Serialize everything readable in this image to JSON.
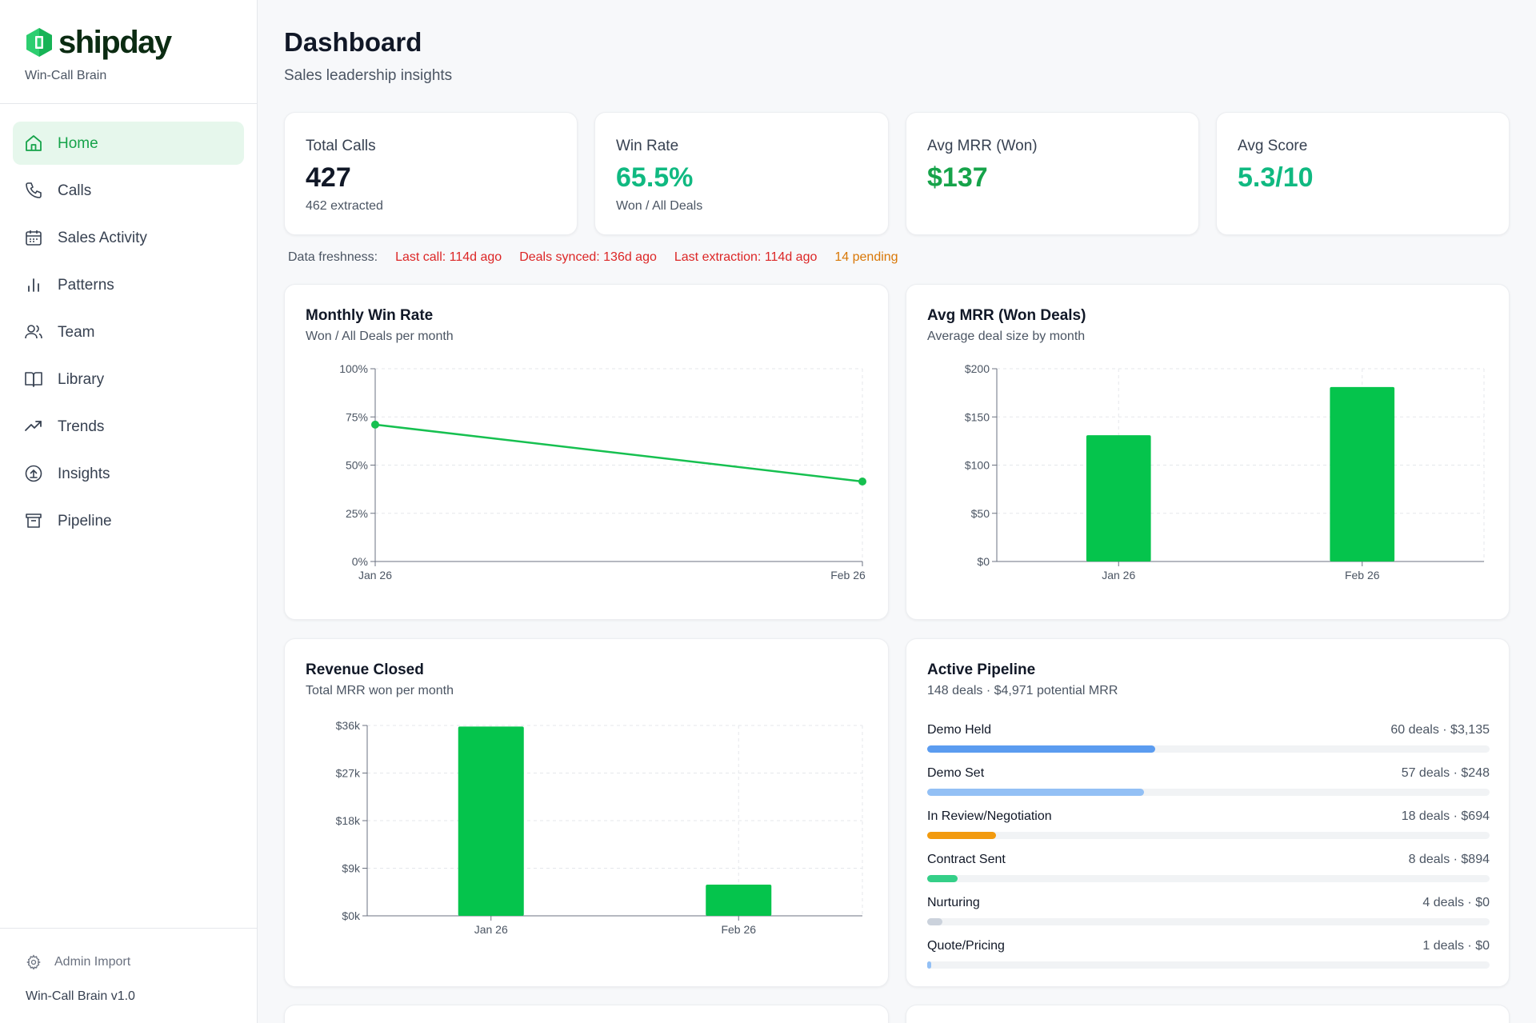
{
  "brand": {
    "name": "shipday",
    "subtitle": "Win-Call Brain"
  },
  "nav": [
    {
      "label": "Home",
      "icon": "home-icon",
      "active": true
    },
    {
      "label": "Calls",
      "icon": "phone-icon"
    },
    {
      "label": "Sales Activity",
      "icon": "calendar-icon"
    },
    {
      "label": "Patterns",
      "icon": "bar-chart-icon"
    },
    {
      "label": "Team",
      "icon": "users-icon"
    },
    {
      "label": "Library",
      "icon": "book-icon"
    },
    {
      "label": "Trends",
      "icon": "trending-up-icon"
    },
    {
      "label": "Insights",
      "icon": "upload-circle-icon"
    },
    {
      "label": "Pipeline",
      "icon": "archive-icon"
    }
  ],
  "footer": {
    "admin_label": "Admin Import",
    "version": "Win-Call Brain v1.0"
  },
  "page": {
    "title": "Dashboard",
    "subtitle": "Sales leadership insights"
  },
  "stats": [
    {
      "label": "Total Calls",
      "value": "427",
      "note": "462 extracted",
      "color": "#111827"
    },
    {
      "label": "Win Rate",
      "value": "65.5%",
      "note": "Won / All Deals",
      "color": "#10b981"
    },
    {
      "label": "Avg MRR (Won)",
      "value": "$137",
      "note": "",
      "color": "#16a34a"
    },
    {
      "label": "Avg Score",
      "value": "5.3/10",
      "note": "",
      "color": "#10b981"
    }
  ],
  "freshness": {
    "label": "Data freshness:",
    "items": [
      {
        "text": "Last call: 114d ago",
        "color": "#dc2626"
      },
      {
        "text": "Deals synced: 136d ago",
        "color": "#dc2626"
      },
      {
        "text": "Last extraction: 114d ago",
        "color": "#dc2626"
      },
      {
        "text": "14 pending",
        "color": "#d97706"
      }
    ]
  },
  "charts": {
    "win_rate": {
      "title": "Monthly Win Rate",
      "subtitle": "Won / All Deals per month"
    },
    "avg_mrr": {
      "title": "Avg MRR (Won Deals)",
      "subtitle": "Average deal size by month"
    },
    "revenue": {
      "title": "Revenue Closed",
      "subtitle": "Total MRR won per month"
    }
  },
  "chart_data": [
    {
      "type": "line",
      "title": "Monthly Win Rate",
      "categories": [
        "Jan 26",
        "Feb 26"
      ],
      "values": [
        71,
        41.5
      ],
      "ylim": [
        0,
        100
      ],
      "yticks": [
        "0%",
        "25%",
        "50%",
        "75%",
        "100%"
      ],
      "color": "#16c050",
      "grid": true
    },
    {
      "type": "bar",
      "title": "Avg MRR (Won Deals)",
      "categories": [
        "Jan 26",
        "Feb 26"
      ],
      "values": [
        131,
        181
      ],
      "ylim": [
        0,
        200
      ],
      "yticks": [
        "$0",
        "$50",
        "$100",
        "$150",
        "$200"
      ],
      "color": "#05c44c",
      "grid": true
    },
    {
      "type": "bar",
      "title": "Revenue Closed",
      "categories": [
        "Jan 26",
        "Feb 26"
      ],
      "values": [
        35800,
        5900
      ],
      "ylim": [
        0,
        36000
      ],
      "yticks": [
        "$0k",
        "$9k",
        "$18k",
        "$27k",
        "$36k"
      ],
      "color": "#05c44c",
      "grid": true
    }
  ],
  "pipeline": {
    "title": "Active Pipeline",
    "subtitle": "148 deals · $4,971 potential MRR",
    "stages": [
      {
        "name": "Demo Held",
        "meta": "60 deals · $3,135",
        "fill": 0.405,
        "color": "#5b9cf0"
      },
      {
        "name": "Demo Set",
        "meta": "57 deals · $248",
        "fill": 0.385,
        "color": "#93c0f5"
      },
      {
        "name": "In Review/Negotiation",
        "meta": "18 deals · $694",
        "fill": 0.122,
        "color": "#f29a0e"
      },
      {
        "name": "Contract Sent",
        "meta": "8 deals · $894",
        "fill": 0.054,
        "color": "#34cf88"
      },
      {
        "name": "Nurturing",
        "meta": "4 deals · $0",
        "fill": 0.027,
        "color": "#cbd2dc"
      },
      {
        "name": "Quote/Pricing",
        "meta": "1 deals · $0",
        "fill": 0.007,
        "color": "#93c0f5"
      }
    ]
  }
}
